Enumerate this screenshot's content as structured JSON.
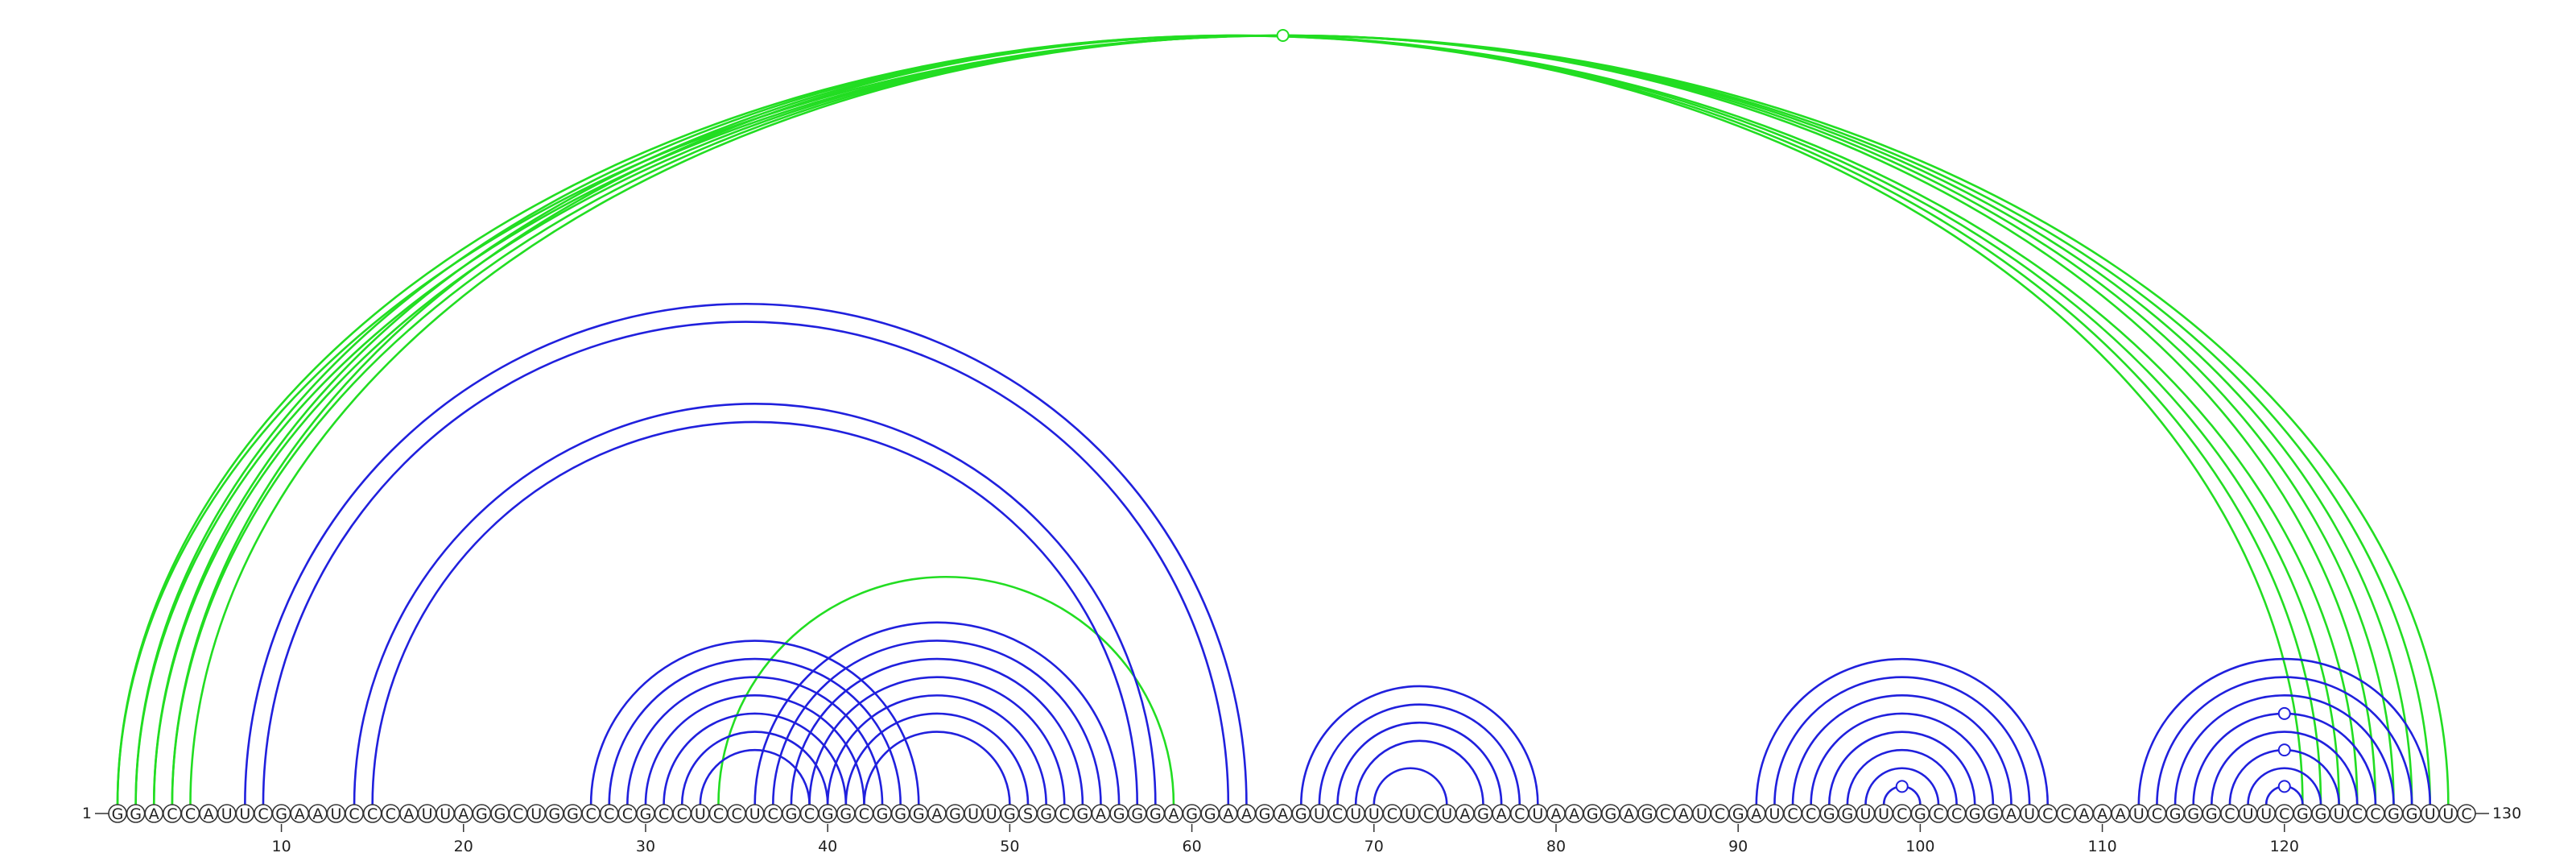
{
  "sequence": "GGACCAUUCGAAUCCCAUUAGGCUGGCCCGCCUCCUCGCGGCGGGAGUUGSGCGAGGGAGGAAGAGUCUUCUCUAGACUAAGGAGCAUCGAUCCGGUUCGCCGGAUCCAAAUCGGGCUUCGGUCCGGUUC",
  "start_label": "1",
  "end_label": "130",
  "ticks": [
    10,
    20,
    30,
    40,
    50,
    60,
    70,
    80,
    90,
    100,
    110,
    120
  ],
  "colors": {
    "blue": "#2020dd",
    "green": "#22dd22"
  },
  "arcs": [
    {
      "i": 1,
      "j": 129,
      "color": "green"
    },
    {
      "i": 2,
      "j": 128,
      "color": "green"
    },
    {
      "i": 3,
      "j": 127,
      "color": "green"
    },
    {
      "i": 4,
      "j": 126,
      "color": "green"
    },
    {
      "i": 5,
      "j": 125,
      "color": "green"
    },
    {
      "i": 1,
      "j": 124,
      "color": "green"
    },
    {
      "i": 2,
      "j": 123,
      "color": "green"
    },
    {
      "i": 3,
      "j": 122,
      "color": "green"
    },
    {
      "i": 4,
      "j": 121,
      "color": "green"
    },
    {
      "i": 34,
      "j": 59,
      "color": "green"
    },
    {
      "i": 8,
      "j": 63,
      "color": "blue"
    },
    {
      "i": 9,
      "j": 62,
      "color": "blue"
    },
    {
      "i": 14,
      "j": 58,
      "color": "blue"
    },
    {
      "i": 15,
      "j": 57,
      "color": "blue"
    },
    {
      "i": 27,
      "j": 45,
      "color": "blue"
    },
    {
      "i": 28,
      "j": 44,
      "color": "blue"
    },
    {
      "i": 29,
      "j": 43,
      "color": "blue"
    },
    {
      "i": 30,
      "j": 42,
      "color": "blue"
    },
    {
      "i": 31,
      "j": 41,
      "color": "blue"
    },
    {
      "i": 32,
      "j": 40,
      "color": "blue"
    },
    {
      "i": 33,
      "j": 39,
      "color": "blue"
    },
    {
      "i": 36,
      "j": 56,
      "color": "blue"
    },
    {
      "i": 37,
      "j": 55,
      "color": "blue"
    },
    {
      "i": 38,
      "j": 54,
      "color": "blue"
    },
    {
      "i": 39,
      "j": 53,
      "color": "blue"
    },
    {
      "i": 40,
      "j": 52,
      "color": "blue"
    },
    {
      "i": 41,
      "j": 51,
      "color": "blue"
    },
    {
      "i": 42,
      "j": 50,
      "color": "blue"
    },
    {
      "i": 66,
      "j": 79,
      "color": "blue"
    },
    {
      "i": 67,
      "j": 78,
      "color": "blue"
    },
    {
      "i": 68,
      "j": 77,
      "color": "blue"
    },
    {
      "i": 69,
      "j": 76,
      "color": "blue"
    },
    {
      "i": 70,
      "j": 74,
      "color": "blue"
    },
    {
      "i": 91,
      "j": 107,
      "color": "blue"
    },
    {
      "i": 92,
      "j": 106,
      "color": "blue"
    },
    {
      "i": 93,
      "j": 105,
      "color": "blue"
    },
    {
      "i": 94,
      "j": 104,
      "color": "blue"
    },
    {
      "i": 95,
      "j": 103,
      "color": "blue"
    },
    {
      "i": 96,
      "j": 102,
      "color": "blue"
    },
    {
      "i": 97,
      "j": 101,
      "color": "blue"
    },
    {
      "i": 98,
      "j": 100,
      "color": "blue"
    },
    {
      "i": 112,
      "j": 128,
      "color": "blue"
    },
    {
      "i": 113,
      "j": 127,
      "color": "blue"
    },
    {
      "i": 114,
      "j": 126,
      "color": "blue"
    },
    {
      "i": 115,
      "j": 125,
      "color": "blue"
    },
    {
      "i": 116,
      "j": 124,
      "color": "blue"
    },
    {
      "i": 117,
      "j": 123,
      "color": "blue"
    },
    {
      "i": 118,
      "j": 122,
      "color": "blue"
    },
    {
      "i": 119,
      "j": 121,
      "color": "blue"
    }
  ],
  "markers": [
    {
      "arc": 0,
      "color": "green"
    },
    {
      "arc": 40,
      "color": "blue"
    },
    {
      "arc": 44,
      "color": "blue"
    },
    {
      "arc": 46,
      "color": "blue"
    },
    {
      "arc": 48,
      "color": "blue"
    }
  ]
}
